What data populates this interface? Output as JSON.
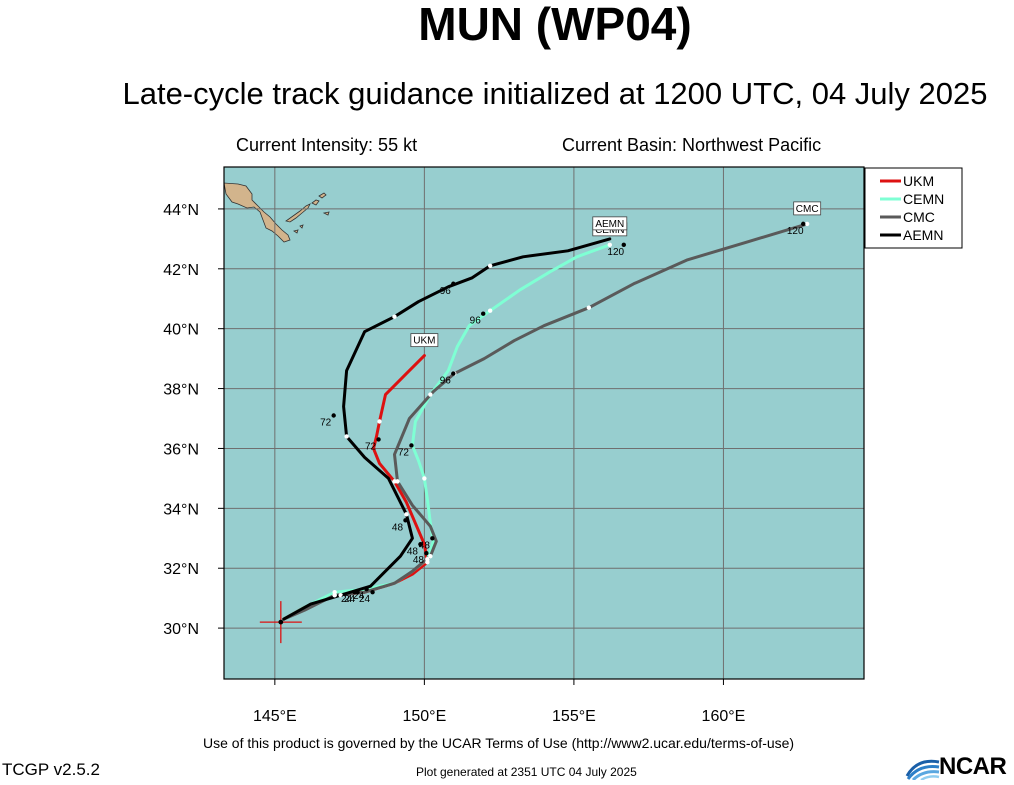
{
  "header": {
    "title": "MUN (WP04)",
    "subtitle": "Late-cycle track guidance initialized at 1200 UTC, 04 July 2025",
    "intensity": "Current Intensity: 55 kt",
    "basin": "Current Basin: Northwest Pacific"
  },
  "footer": {
    "terms": "Use of this product is governed by the UCAR Terms of Use (http://www2.ucar.edu/terms-of-use)",
    "generated": "Plot generated at 2351 UTC   04 July 2025",
    "version": "TCGP v2.5.2",
    "logo": "NCAR"
  },
  "colors": {
    "ocean": "#97cecf",
    "land": "#d2b48c",
    "grid": "#6f6f6f"
  },
  "chart_data": {
    "type": "line",
    "x_axis": {
      "range": [
        143.3,
        164.7
      ],
      "ticks": [
        145,
        150,
        155,
        160
      ],
      "tick_labels": [
        "145°E",
        "150°E",
        "155°E",
        "160°E"
      ]
    },
    "y_axis": {
      "range": [
        28.3,
        45.4
      ],
      "ticks": [
        30,
        32,
        34,
        36,
        38,
        40,
        42,
        44
      ],
      "tick_labels": [
        "30°N",
        "32°N",
        "34°N",
        "36°N",
        "38°N",
        "40°N",
        "42°N",
        "44°N"
      ]
    },
    "grid": true,
    "legend_position": "outside-top-right",
    "current_position": {
      "lon": 145.2,
      "lat": 30.2
    },
    "series": [
      {
        "name": "UKM",
        "color": "#dd1111",
        "points": [
          [
            145.3,
            30.3
          ],
          [
            146.0,
            30.7
          ],
          [
            147.0,
            31.1
          ],
          [
            148.0,
            31.2
          ],
          [
            149.0,
            31.5
          ],
          [
            149.6,
            31.8
          ],
          [
            150.1,
            32.2
          ],
          [
            150.0,
            32.8
          ],
          [
            149.7,
            33.5
          ],
          [
            149.4,
            34.2
          ],
          [
            149.0,
            34.9
          ],
          [
            148.5,
            35.5
          ],
          [
            148.3,
            36.0
          ],
          [
            148.4,
            36.4
          ],
          [
            148.5,
            36.9
          ],
          [
            148.7,
            37.8
          ],
          [
            149.4,
            38.5
          ],
          [
            150.0,
            39.1
          ]
        ],
        "end_label": "UKM",
        "hour_labels": [
          {
            "text": "24",
            "lon": 148.0,
            "lat": 31.0
          },
          {
            "text": "48",
            "lon": 149.8,
            "lat": 32.3
          },
          {
            "text": "72",
            "lon": 148.2,
            "lat": 36.1
          }
        ]
      },
      {
        "name": "CEMN",
        "color": "#7fffd4",
        "points": [
          [
            145.3,
            30.3
          ],
          [
            146.0,
            30.7
          ],
          [
            147.0,
            31.2
          ],
          [
            148.0,
            31.3
          ],
          [
            149.0,
            31.5
          ],
          [
            149.6,
            31.9
          ],
          [
            150.1,
            32.3
          ],
          [
            150.3,
            32.9
          ],
          [
            150.2,
            33.5
          ],
          [
            150.1,
            34.3
          ],
          [
            150.0,
            35.0
          ],
          [
            149.8,
            35.6
          ],
          [
            149.6,
            36.1
          ],
          [
            149.7,
            36.9
          ],
          [
            150.2,
            37.8
          ],
          [
            150.8,
            38.6
          ],
          [
            151.1,
            39.4
          ],
          [
            151.5,
            40.1
          ],
          [
            152.2,
            40.6
          ],
          [
            153.2,
            41.3
          ],
          [
            154.2,
            41.9
          ],
          [
            155.1,
            42.4
          ],
          [
            156.2,
            42.8
          ]
        ],
        "end_label": "CEMN",
        "hour_labels": [
          {
            "text": "24",
            "lon": 147.8,
            "lat": 31.1
          },
          {
            "text": "48",
            "lon": 150.0,
            "lat": 32.8
          },
          {
            "text": "72",
            "lon": 149.3,
            "lat": 35.9
          },
          {
            "text": "96",
            "lon": 151.7,
            "lat": 40.3
          },
          {
            "text": "120",
            "lon": 156.4,
            "lat": 42.6
          }
        ]
      },
      {
        "name": "CMC",
        "color": "#5a5a5a",
        "points": [
          [
            145.3,
            30.3
          ],
          [
            146.0,
            30.6
          ],
          [
            147.0,
            31.1
          ],
          [
            148.0,
            31.2
          ],
          [
            149.0,
            31.5
          ],
          [
            149.6,
            31.9
          ],
          [
            150.2,
            32.4
          ],
          [
            150.4,
            32.9
          ],
          [
            150.2,
            33.4
          ],
          [
            149.6,
            34.1
          ],
          [
            149.1,
            34.9
          ],
          [
            149.0,
            35.8
          ],
          [
            149.5,
            37.0
          ],
          [
            150.3,
            37.9
          ],
          [
            151.0,
            38.5
          ],
          [
            152.0,
            39.0
          ],
          [
            153.0,
            39.6
          ],
          [
            154.0,
            40.1
          ],
          [
            155.5,
            40.7
          ],
          [
            157.0,
            41.5
          ],
          [
            158.8,
            42.3
          ],
          [
            160.8,
            42.9
          ],
          [
            162.8,
            43.5
          ]
        ],
        "end_label": "CMC",
        "hour_labels": [
          {
            "text": "24",
            "lon": 147.5,
            "lat": 31.0
          },
          {
            "text": "48",
            "lon": 149.6,
            "lat": 32.6
          },
          {
            "text": "96",
            "lon": 150.7,
            "lat": 38.3
          },
          {
            "text": "120",
            "lon": 162.4,
            "lat": 43.3
          }
        ]
      },
      {
        "name": "AEMN",
        "color": "#000000",
        "points": [
          [
            145.3,
            30.3
          ],
          [
            146.2,
            30.8
          ],
          [
            147.2,
            31.1
          ],
          [
            148.2,
            31.4
          ],
          [
            149.2,
            32.4
          ],
          [
            149.6,
            33.0
          ],
          [
            149.4,
            33.8
          ],
          [
            149.1,
            34.4
          ],
          [
            148.8,
            35.0
          ],
          [
            148.0,
            35.7
          ],
          [
            147.4,
            36.4
          ],
          [
            147.3,
            37.4
          ],
          [
            147.4,
            38.6
          ],
          [
            148.0,
            39.9
          ],
          [
            149.0,
            40.4
          ],
          [
            149.8,
            40.9
          ],
          [
            150.8,
            41.4
          ],
          [
            151.6,
            41.7
          ],
          [
            152.2,
            42.1
          ],
          [
            153.3,
            42.4
          ],
          [
            154.8,
            42.6
          ],
          [
            156.2,
            43.0
          ]
        ],
        "end_label": "AEMN",
        "hour_labels": [
          {
            "text": "24",
            "lon": 147.4,
            "lat": 31.0
          },
          {
            "text": "48",
            "lon": 149.1,
            "lat": 33.4
          },
          {
            "text": "72",
            "lon": 146.7,
            "lat": 36.9
          },
          {
            "text": "96",
            "lon": 150.7,
            "lat": 41.3
          }
        ]
      }
    ]
  }
}
